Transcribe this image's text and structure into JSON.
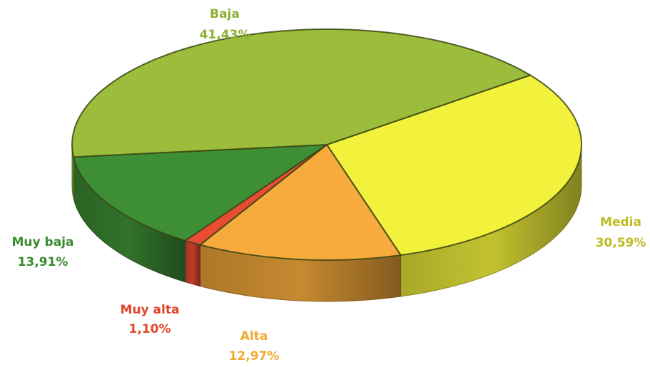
{
  "chart_data": {
    "type": "pie",
    "categories": [
      "Media",
      "Alta",
      "Muy alta",
      "Muy baja",
      "Baja"
    ],
    "values": [
      30.59,
      12.97,
      1.1,
      13.91,
      41.43
    ],
    "value_labels": [
      "30,59%",
      "12,97%",
      "1,10%",
      "13,91%",
      "41,43%"
    ],
    "colors": [
      "#f2f23c",
      "#f6ab3c",
      "#e84c33",
      "#3d8e35",
      "#9cbd3b"
    ],
    "label_colors": [
      "#bcbc22",
      "#f2aa32",
      "#e2452a",
      "#3a8a30",
      "#8db030"
    ]
  }
}
